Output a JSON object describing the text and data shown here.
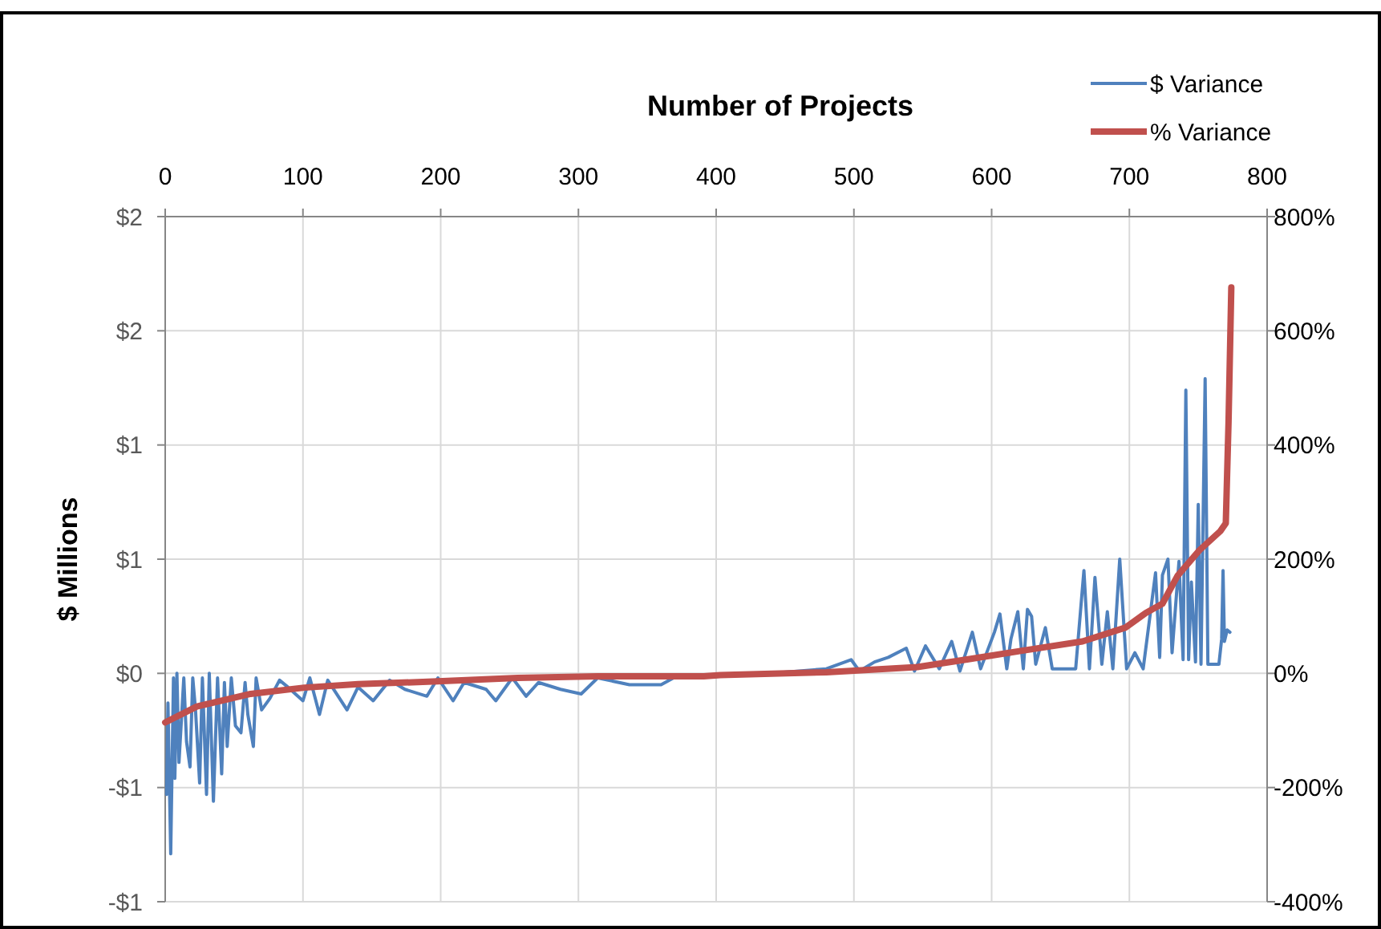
{
  "chart_data": {
    "type": "line",
    "xlabel": "Number of Projects",
    "ylabel": "$ Millions",
    "xlim": [
      0,
      800
    ],
    "xticks": [
      0,
      100,
      200,
      300,
      400,
      500,
      600,
      700,
      800
    ],
    "ylim": [
      -1,
      2
    ],
    "yticks": [
      {
        "value": 2,
        "label": "$2"
      },
      {
        "value": 1.5,
        "label": "$2"
      },
      {
        "value": 1,
        "label": "$1"
      },
      {
        "value": 0.5,
        "label": "$1"
      },
      {
        "value": 0,
        "label": "$0"
      },
      {
        "value": -0.5,
        "label": "-$1"
      },
      {
        "value": -1,
        "label": "-$1"
      }
    ],
    "y2lim": [
      -400,
      800
    ],
    "y2ticks": [
      {
        "value": 800,
        "label": "800%"
      },
      {
        "value": 600,
        "label": "600%"
      },
      {
        "value": 400,
        "label": "400%"
      },
      {
        "value": 200,
        "label": "200%"
      },
      {
        "value": 0,
        "label": "0%"
      },
      {
        "value": -200,
        "label": "-200%"
      },
      {
        "value": -400,
        "label": "-400%"
      }
    ],
    "grid": true,
    "legend": "top right",
    "series": [
      {
        "name": "$ Variance",
        "color": "#4f81bd",
        "x": [
          1,
          2,
          4,
          6,
          7,
          8.5,
          10,
          13.5,
          15.5,
          18,
          20,
          22,
          25,
          27,
          30,
          32,
          35,
          38,
          41,
          43,
          45,
          48,
          51,
          55,
          58,
          60,
          64,
          66,
          70,
          76,
          83,
          89,
          100,
          105,
          112,
          118,
          132,
          140,
          151,
          163,
          174,
          190,
          198,
          209,
          217,
          233,
          240,
          252,
          262,
          271,
          287,
          302,
          314,
          337,
          360,
          372,
          403,
          440,
          480,
          498,
          504,
          515,
          525,
          538,
          544,
          552,
          562,
          571,
          577,
          586,
          592,
          602,
          606,
          611,
          614,
          619,
          623,
          626,
          629,
          632,
          639,
          644,
          653,
          661,
          667,
          671,
          675,
          680,
          684,
          688,
          693,
          698,
          704,
          710,
          719,
          722,
          724,
          728,
          731,
          736,
          739,
          741,
          743,
          745,
          748,
          750,
          752,
          755,
          757,
          765,
          767,
          768,
          769,
          771,
          773
        ],
        "values": [
          -0.53,
          -0.13,
          -0.79,
          -0.02,
          -0.46,
          0,
          -0.39,
          -0.02,
          -0.3,
          -0.41,
          -0.02,
          -0.16,
          -0.48,
          -0.02,
          -0.53,
          0,
          -0.56,
          -0.02,
          -0.44,
          -0.04,
          -0.32,
          -0.02,
          -0.23,
          -0.26,
          -0.04,
          -0.18,
          -0.32,
          -0.02,
          -0.16,
          -0.11,
          -0.03,
          -0.06,
          -0.12,
          -0.02,
          -0.18,
          -0.03,
          -0.16,
          -0.06,
          -0.12,
          -0.03,
          -0.07,
          -0.1,
          -0.02,
          -0.12,
          -0.04,
          -0.07,
          -0.12,
          -0.02,
          -0.1,
          -0.04,
          -0.07,
          -0.09,
          -0.02,
          -0.05,
          -0.05,
          -0.01,
          null,
          0,
          0.02,
          0.06,
          0.01,
          0.05,
          0.07,
          0.11,
          0.01,
          0.12,
          0.02,
          0.14,
          0.01,
          0.18,
          0.02,
          0.18,
          0.26,
          0.02,
          0.15,
          0.27,
          0.02,
          0.28,
          0.25,
          0.04,
          0.2,
          0.02,
          0.02,
          0.02,
          0.45,
          0.02,
          0.42,
          0.04,
          0.27,
          0.02,
          0.5,
          0.02,
          0.09,
          0.02,
          0.44,
          0.07,
          0.43,
          0.5,
          0.09,
          0.49,
          0.06,
          1.24,
          0.06,
          0.4,
          0.05,
          0.74,
          0.04,
          1.29,
          0.04,
          0.04,
          0.15,
          0.45,
          0.14,
          0.19,
          0.18
        ]
      },
      {
        "name": "% Variance",
        "color": "#c0504d",
        "axis": "y2",
        "x": [
          0,
          23,
          62,
          101,
          140,
          198,
          256,
          314,
          391,
          403,
          480,
          546,
          584,
          623,
          666,
          697,
          712,
          724,
          735,
          751,
          766,
          770,
          772,
          774
        ],
        "values": [
          -86,
          -58,
          -36,
          -25,
          -19,
          -14,
          -8,
          -5,
          -5,
          -3,
          2,
          11,
          25,
          40,
          56,
          80,
          106,
          122,
          171,
          216,
          249,
          263,
          441,
          676
        ]
      }
    ]
  }
}
